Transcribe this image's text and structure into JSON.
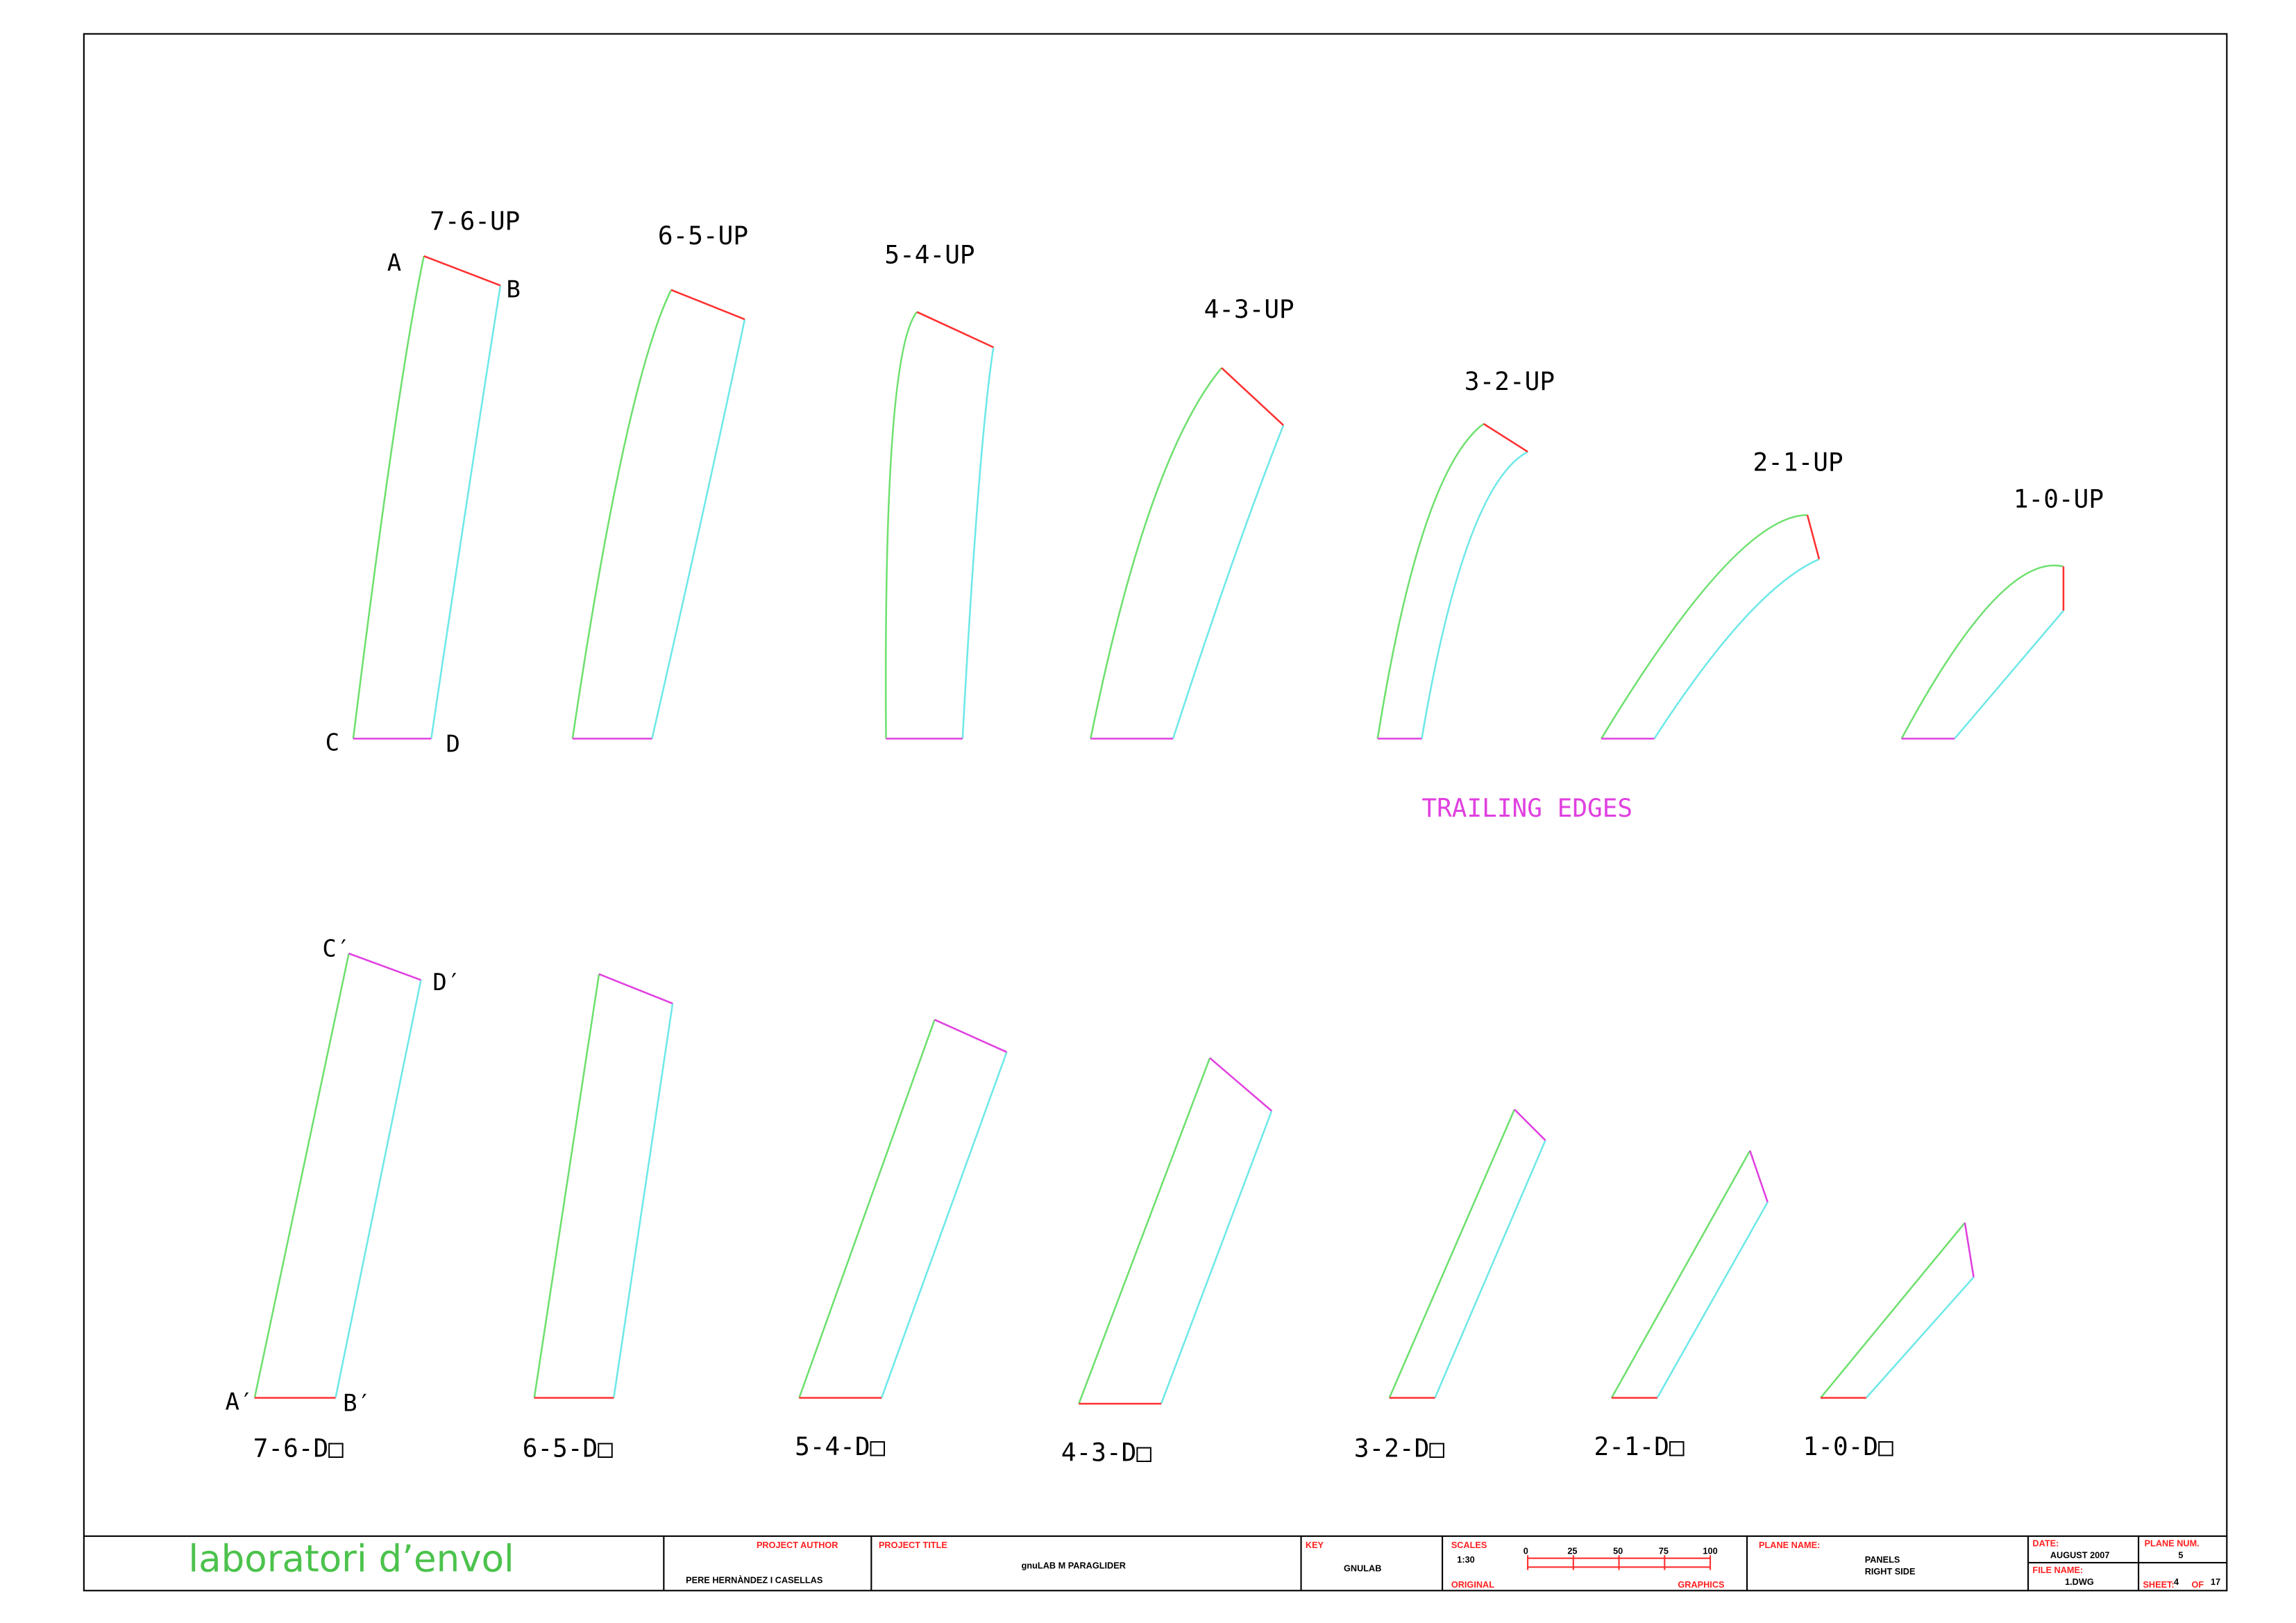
{
  "panels_upper": [
    "7-6-UP",
    "6-5-UP",
    "5-4-UP",
    "4-3-UP",
    "3-2-UP",
    "2-1-UP",
    "1-0-UP"
  ],
  "panels_lower": [
    "7-6-D□",
    "6-5-D□",
    "5-4-D□",
    "4-3-D□",
    "3-2-D□",
    "2-1-D□",
    "1-0-D□"
  ],
  "point_labels": [
    "A",
    "B",
    "C",
    "D",
    "C′",
    "D′",
    "A′",
    "B′"
  ],
  "annotation": "TRAILING EDGES",
  "title_block": {
    "logo": "laboratori d’envol",
    "author_label": "PROJECT AUTHOR",
    "author": "PERE HERNÀNDEZ I CASELLAS",
    "title_label": "PROJECT TITLE",
    "title": "gnuLAB M PARAGLIDER",
    "key_label": "KEY",
    "key": "GNULAB",
    "scales_label": "SCALES",
    "scale": "1:30",
    "scale_ticks": [
      "0",
      "25",
      "50",
      "75",
      "100"
    ],
    "original": "ORIGINAL",
    "graphics": "GRAPHICS",
    "plane_name_label": "PLANE NAME:",
    "plane_name": [
      "PANELS",
      "RIGHT SIDE"
    ],
    "date_label": "DATE:",
    "date": "AUGUST 2007",
    "plane_num_label": "PLANE NUM.",
    "plane_num": "5",
    "file_name_label": "FILE NAME:",
    "file_name": "1.DWG",
    "sheet_label": "SHEET:",
    "sheet": "4",
    "of": "OF",
    "sheets": "17"
  }
}
